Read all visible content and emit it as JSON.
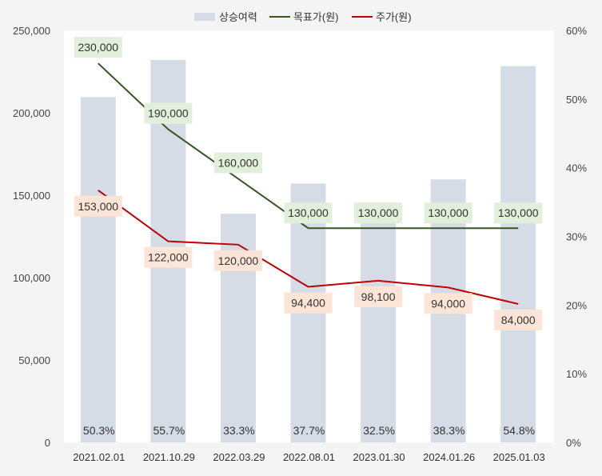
{
  "chart_data": {
    "type": "bar+line",
    "categories": [
      "2021.02.01",
      "2021.10.29",
      "2022.03.29",
      "2022.08.01",
      "2023.01.30",
      "2024.01.26",
      "2025.01.03"
    ],
    "series": [
      {
        "name": "상승여력",
        "type": "bar",
        "axis": "right",
        "values": [
          0.503,
          0.557,
          0.333,
          0.377,
          0.325,
          0.383,
          0.548
        ],
        "labels": [
          "50.3%",
          "55.7%",
          "33.3%",
          "37.7%",
          "32.5%",
          "38.3%",
          "54.8%"
        ],
        "color": "#d6dce6"
      },
      {
        "name": "목표가(원)",
        "type": "line",
        "axis": "left",
        "values": [
          230000,
          190000,
          160000,
          130000,
          130000,
          130000,
          130000
        ],
        "labels": [
          "230,000",
          "190,000",
          "160,000",
          "130,000",
          "130,000",
          "130,000",
          "130,000"
        ],
        "color": "#375623",
        "label_bg": "#e2efda"
      },
      {
        "name": "주가(원)",
        "type": "line",
        "axis": "left",
        "values": [
          153000,
          122000,
          120000,
          94400,
          98100,
          94000,
          84000
        ],
        "labels": [
          "153,000",
          "122,000",
          "120,000",
          "94,400",
          "98,100",
          "94,000",
          "84,000"
        ],
        "color": "#c00000",
        "label_bg": "#fce4d6"
      }
    ],
    "y_left": {
      "min": 0,
      "max": 250000,
      "ticks": [
        "0",
        "50,000",
        "100,000",
        "150,000",
        "200,000",
        "250,000"
      ]
    },
    "y_right": {
      "min": 0,
      "max": 0.6,
      "ticks": [
        "0%",
        "10%",
        "20%",
        "30%",
        "40%",
        "50%",
        "60%"
      ]
    },
    "legend_position": "top-center"
  }
}
